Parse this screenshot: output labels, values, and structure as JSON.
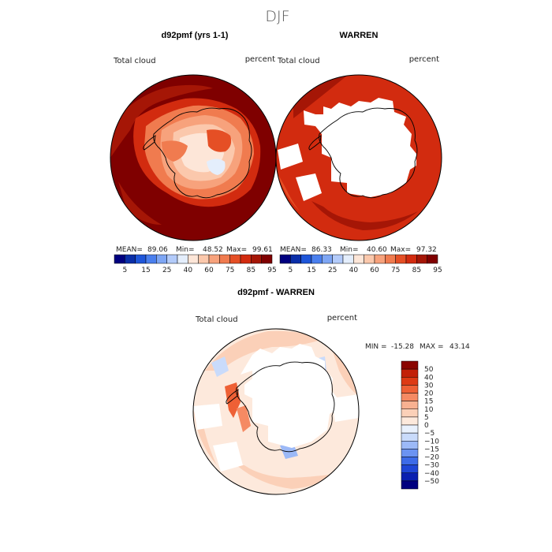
{
  "page": {
    "title": "DJF"
  },
  "colors": {
    "background": "#ffffff",
    "warm_scale": [
      "#00007f",
      "#0a2ea8",
      "#1f56d9",
      "#4a7fee",
      "#7ea6f4",
      "#b3cbfa",
      "#e4eefc",
      "#fde6d8",
      "#fbc8ac",
      "#f7a27c",
      "#f07b4f",
      "#e54f25",
      "#d22b0f",
      "#a51606",
      "#7f0000"
    ],
    "diff_scale": [
      "#00007f",
      "#0a1fb0",
      "#1f46d6",
      "#3d6be8",
      "#6b93f2",
      "#9cb9f7",
      "#c9dbfb",
      "#e9f1fd",
      "#fde9dc",
      "#fbd0b8",
      "#f8b191",
      "#f58a63",
      "#ee6035",
      "#dd3a14",
      "#c22008",
      "#8a0500"
    ]
  },
  "chart_data": [
    {
      "type": "heatmap",
      "projection": "south-polar-stereographic",
      "title": "d92pmf (yrs 1-1)",
      "left_label": "Total cloud",
      "right_label": "percent",
      "stats": {
        "mean_label": "MEAN=",
        "mean": "89.06",
        "min_label": "Min=",
        "min": "48.52",
        "max_label": "Max=",
        "max": "99.61"
      },
      "colorbar": {
        "ticks": [
          "5",
          "15",
          "25",
          "40",
          "60",
          "75",
          "85",
          "95"
        ]
      },
      "dominant_value": 95
    },
    {
      "type": "heatmap",
      "projection": "south-polar-stereographic",
      "title": "WARREN",
      "left_label": "Total cloud",
      "right_label": "percent",
      "stats": {
        "mean_label": "MEAN=",
        "mean": "86.33",
        "min_label": "Min=",
        "min": "40.60",
        "max_label": "Max=",
        "max": "97.32"
      },
      "colorbar": {
        "ticks": [
          "5",
          "15",
          "25",
          "40",
          "60",
          "75",
          "85",
          "95"
        ]
      },
      "dominant_value": 88
    },
    {
      "type": "heatmap",
      "projection": "south-polar-stereographic",
      "title": "d92pmf - WARREN",
      "left_label": "Total cloud",
      "right_label": "percent",
      "stats": {
        "min_label": "MIN =",
        "min": "-15.28",
        "max_label": "MAX =",
        "max": "43.14"
      },
      "colorbar": {
        "ticks": [
          "50",
          "40",
          "30",
          "20",
          "15",
          "10",
          "5",
          "0",
          "−5",
          "−10",
          "−15",
          "−20",
          "−30",
          "−40",
          "−50"
        ]
      },
      "dominant_value": 5
    }
  ]
}
